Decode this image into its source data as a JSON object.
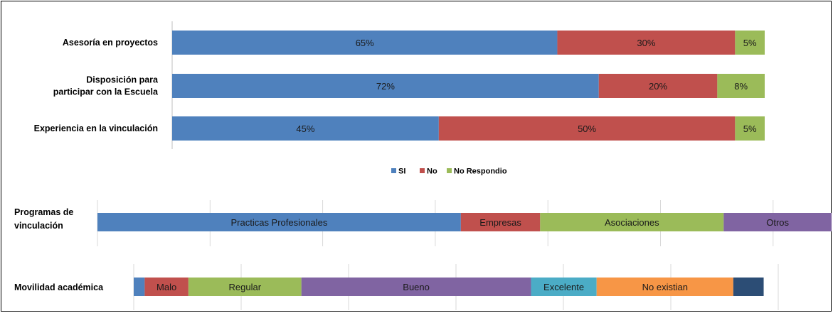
{
  "chart_data": [
    {
      "type": "bar",
      "orientation": "horizontal",
      "stacked": true,
      "categories": [
        "Asesoría en proyectos",
        "Disposición para participar con la Escuela",
        "Experiencia en la vinculación"
      ],
      "category_lines": [
        [
          "Asesoría en proyectos"
        ],
        [
          "Disposición para",
          "participar con la Escuela"
        ],
        [
          "Experiencia en la vinculación"
        ]
      ],
      "series": [
        {
          "name": "SI",
          "color": "#4f81bd",
          "values": [
            65,
            72,
            45
          ],
          "labels": [
            "65%",
            "72%",
            "45%"
          ]
        },
        {
          "name": "No",
          "color": "#c0504d",
          "values": [
            30,
            20,
            50
          ],
          "labels": [
            "30%",
            "20%",
            "50%"
          ]
        },
        {
          "name": "No Respondio",
          "color": "#9bbb59",
          "values": [
            5,
            8,
            5
          ],
          "labels": [
            "5%",
            "8%",
            "5%"
          ]
        }
      ],
      "xlim": [
        0,
        100
      ],
      "legend_position": "bottom"
    },
    {
      "type": "bar",
      "orientation": "horizontal",
      "stacked": true,
      "category_lines": [
        "Programas de",
        "vinculación"
      ],
      "segments": [
        {
          "label": "Practicas Profesionales",
          "value": 49.5,
          "color": "#4f81bd"
        },
        {
          "label": "Empresas",
          "value": 10.8,
          "color": "#c0504d"
        },
        {
          "label": "Asociaciones",
          "value": 25.0,
          "color": "#9bbb59"
        },
        {
          "label": "Otros",
          "value": 14.7,
          "color": "#8064a2"
        }
      ],
      "xlim": [
        0,
        100
      ],
      "grid": true
    },
    {
      "type": "bar",
      "orientation": "horizontal",
      "stacked": true,
      "category": "Movilidad académica",
      "segments": [
        {
          "label": "",
          "value": 1.8,
          "color": "#4f81bd"
        },
        {
          "label": "Malo",
          "value": 7.2,
          "color": "#c0504d"
        },
        {
          "label": "Regular",
          "value": 18.6,
          "color": "#9bbb59"
        },
        {
          "label": "Bueno",
          "value": 37.8,
          "color": "#8064a2"
        },
        {
          "label": "Excelente",
          "value": 10.8,
          "color": "#4bacc6"
        },
        {
          "label": "No existian",
          "value": 22.5,
          "color": "#f79646"
        },
        {
          "label": "",
          "value": 5.0,
          "color": "#2c4d75"
        }
      ],
      "xlim": [
        0,
        105
      ],
      "grid": true
    }
  ]
}
